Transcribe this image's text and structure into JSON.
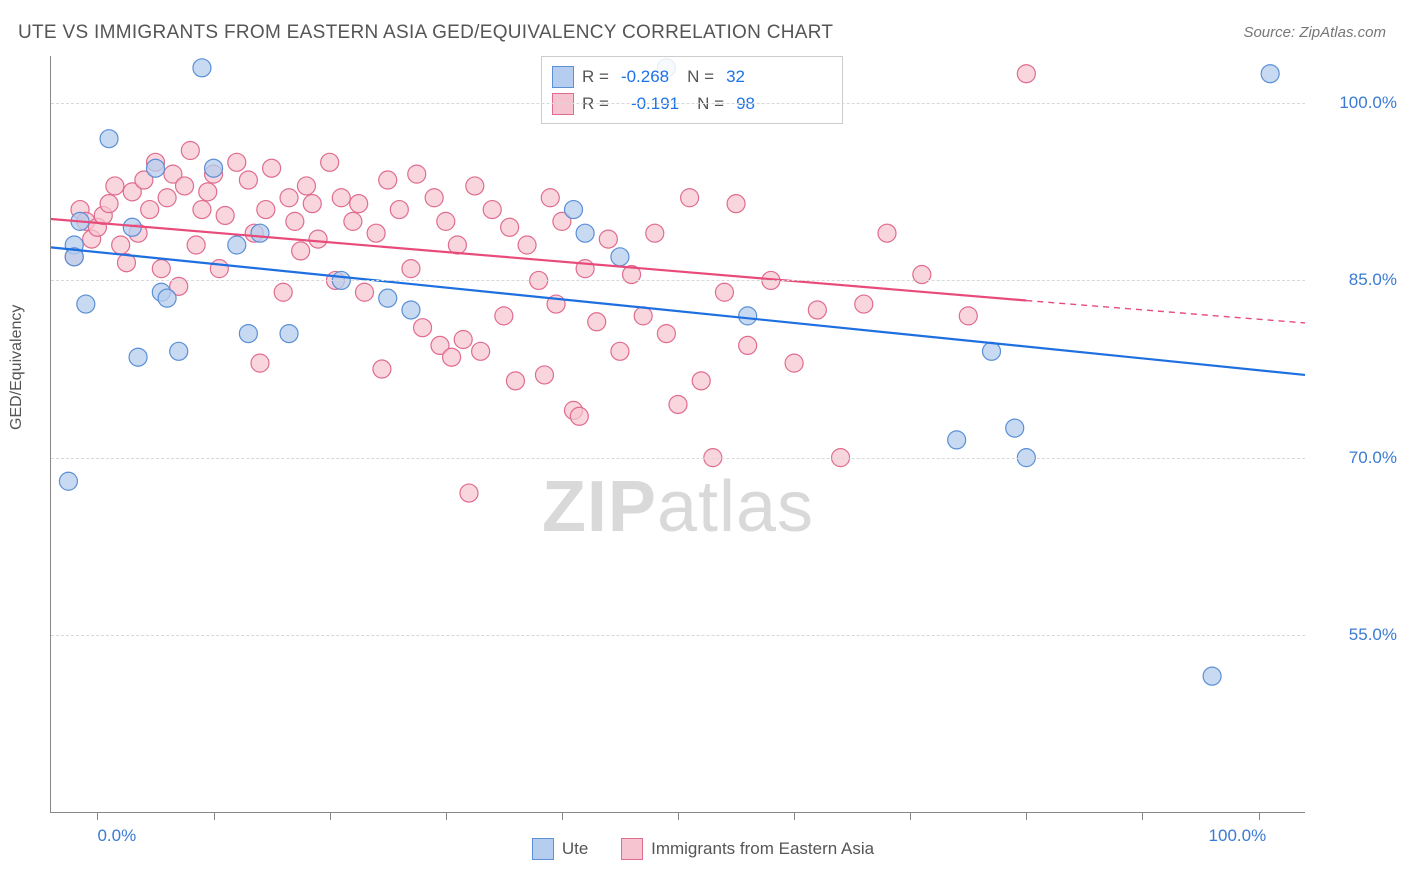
{
  "title": "UTE VS IMMIGRANTS FROM EASTERN ASIA GED/EQUIVALENCY CORRELATION CHART",
  "source": "Source: ZipAtlas.com",
  "watermark_zip": "ZIP",
  "watermark_atlas": "atlas",
  "ylabel": "GED/Equivalency",
  "chart": {
    "type": "scatter",
    "background_color": "#ffffff",
    "grid_color": "#d8d8d8",
    "axis_color": "#888888",
    "xlim": [
      -4,
      104
    ],
    "ylim": [
      40,
      104
    ],
    "ytick_values": [
      55,
      70,
      85,
      100
    ],
    "ytick_labels": [
      "55.0%",
      "70.0%",
      "85.0%",
      "100.0%"
    ],
    "xtick_values": [
      0,
      10,
      20,
      30,
      40,
      50,
      60,
      70,
      80,
      90,
      100
    ],
    "xtick_labels": {
      "0": "0.0%",
      "100": "100.0%"
    },
    "tick_font_color": "#3a7bd5",
    "tick_font_size": 17,
    "series": {
      "ute": {
        "label": "Ute",
        "R_label": "R =",
        "R_value": "-0.268",
        "N_label": "N =",
        "N_value": "32",
        "marker_fill": "#b5cdee",
        "marker_stroke": "#5b8fd6",
        "marker_opacity": 0.75,
        "marker_radius": 9,
        "line_color": "#1e6fe0",
        "line_width": 2.2,
        "trend": {
          "x1": -4,
          "y1": 87.8,
          "x2": 104,
          "y2": 77.0,
          "dash_from_x": 104
        },
        "points": [
          [
            -2.5,
            68
          ],
          [
            -2,
            88
          ],
          [
            -2,
            87
          ],
          [
            -1.5,
            90
          ],
          [
            -1,
            83
          ],
          [
            1,
            97
          ],
          [
            3,
            89.5
          ],
          [
            3.5,
            78.5
          ],
          [
            5,
            94.5
          ],
          [
            5.5,
            84
          ],
          [
            6,
            83.5
          ],
          [
            7,
            79
          ],
          [
            9,
            103
          ],
          [
            10,
            94.5
          ],
          [
            12,
            88
          ],
          [
            13,
            80.5
          ],
          [
            14,
            89
          ],
          [
            16.5,
            80.5
          ],
          [
            21,
            85
          ],
          [
            25,
            83.5
          ],
          [
            27,
            82.5
          ],
          [
            41,
            91
          ],
          [
            42,
            89
          ],
          [
            45,
            87
          ],
          [
            49,
            103
          ],
          [
            56,
            82
          ],
          [
            74,
            71.5
          ],
          [
            77,
            79
          ],
          [
            79,
            72.5
          ],
          [
            80,
            70
          ],
          [
            96,
            51.5
          ],
          [
            101,
            102.5
          ]
        ]
      },
      "asia": {
        "label": "Immigrants from Eastern Asia",
        "R_label": "R =",
        "R_value": "-0.191",
        "N_label": "N =",
        "N_value": "98",
        "marker_fill": "#f6c4d0",
        "marker_stroke": "#e06c8f",
        "marker_opacity": 0.7,
        "marker_radius": 9,
        "line_color": "#e84b7a",
        "line_width": 2.2,
        "trend": {
          "x1": -4,
          "y1": 90.2,
          "x2": 80,
          "y2": 83.3,
          "dash_from_x": 80,
          "dash_to_x": 104,
          "dash_y2": 81.4
        },
        "points": [
          [
            -2,
            87
          ],
          [
            -1.5,
            91
          ],
          [
            -1,
            90
          ],
          [
            -0.5,
            88.5
          ],
          [
            0,
            89.5
          ],
          [
            0.5,
            90.5
          ],
          [
            1,
            91.5
          ],
          [
            1.5,
            93
          ],
          [
            2,
            88
          ],
          [
            2.5,
            86.5
          ],
          [
            3,
            92.5
          ],
          [
            3.5,
            89
          ],
          [
            4,
            93.5
          ],
          [
            4.5,
            91
          ],
          [
            5,
            95
          ],
          [
            5.5,
            86
          ],
          [
            6,
            92
          ],
          [
            6.5,
            94
          ],
          [
            7,
            84.5
          ],
          [
            7.5,
            93
          ],
          [
            8,
            96
          ],
          [
            8.5,
            88
          ],
          [
            9,
            91
          ],
          [
            9.5,
            92.5
          ],
          [
            10,
            94
          ],
          [
            10.5,
            86
          ],
          [
            11,
            90.5
          ],
          [
            12,
            95
          ],
          [
            13,
            93.5
          ],
          [
            13.5,
            89
          ],
          [
            14,
            78
          ],
          [
            14.5,
            91
          ],
          [
            15,
            94.5
          ],
          [
            16,
            84
          ],
          [
            16.5,
            92
          ],
          [
            17,
            90
          ],
          [
            17.5,
            87.5
          ],
          [
            18,
            93
          ],
          [
            18.5,
            91.5
          ],
          [
            19,
            88.5
          ],
          [
            20,
            95
          ],
          [
            20.5,
            85
          ],
          [
            21,
            92
          ],
          [
            22,
            90
          ],
          [
            22.5,
            91.5
          ],
          [
            23,
            84
          ],
          [
            24,
            89
          ],
          [
            24.5,
            77.5
          ],
          [
            25,
            93.5
          ],
          [
            26,
            91
          ],
          [
            27,
            86
          ],
          [
            27.5,
            94
          ],
          [
            28,
            81
          ],
          [
            29,
            92
          ],
          [
            29.5,
            79.5
          ],
          [
            30,
            90
          ],
          [
            30.5,
            78.5
          ],
          [
            31,
            88
          ],
          [
            31.5,
            80
          ],
          [
            32,
            67
          ],
          [
            32.5,
            93
          ],
          [
            33,
            79
          ],
          [
            34,
            91
          ],
          [
            35,
            82
          ],
          [
            35.5,
            89.5
          ],
          [
            36,
            76.5
          ],
          [
            37,
            88
          ],
          [
            38,
            85
          ],
          [
            38.5,
            77
          ],
          [
            39,
            92
          ],
          [
            39.5,
            83
          ],
          [
            40,
            90
          ],
          [
            41,
            74
          ],
          [
            41.5,
            73.5
          ],
          [
            42,
            86
          ],
          [
            43,
            81.5
          ],
          [
            44,
            88.5
          ],
          [
            45,
            79
          ],
          [
            46,
            85.5
          ],
          [
            47,
            82
          ],
          [
            48,
            89
          ],
          [
            49,
            80.5
          ],
          [
            50,
            74.5
          ],
          [
            51,
            92
          ],
          [
            52,
            76.5
          ],
          [
            53,
            70
          ],
          [
            54,
            84
          ],
          [
            55,
            91.5
          ],
          [
            56,
            79.5
          ],
          [
            58,
            85
          ],
          [
            60,
            78
          ],
          [
            62,
            82.5
          ],
          [
            64,
            70
          ],
          [
            66,
            83
          ],
          [
            68,
            89
          ],
          [
            71,
            85.5
          ],
          [
            75,
            82
          ],
          [
            80,
            102.5
          ]
        ]
      }
    }
  }
}
